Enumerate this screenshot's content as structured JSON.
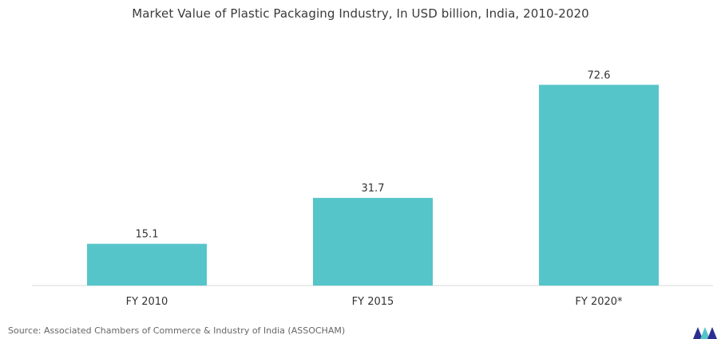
{
  "chart_data": {
    "type": "bar",
    "title": "Market Value of Plastic Packaging Industry, In USD billion, India, 2010-2020",
    "categories": [
      "FY 2010",
      "FY 2015",
      "FY 2020*"
    ],
    "values": [
      15.1,
      31.7,
      72.6
    ],
    "value_labels": [
      "15.1",
      "31.7",
      "72.6"
    ],
    "ylim": [
      0,
      75
    ],
    "grid": false,
    "bar_color": "#56c5c9",
    "axis_color": "#d9d9d9"
  },
  "source": "Source: Associated Chambers of Commerce & Industry of India (ASSOCHAM)",
  "logo": {
    "icon": "mordor-intelligence-logo-icon",
    "colors": [
      "#2b2f8f",
      "#56c5c9"
    ]
  }
}
